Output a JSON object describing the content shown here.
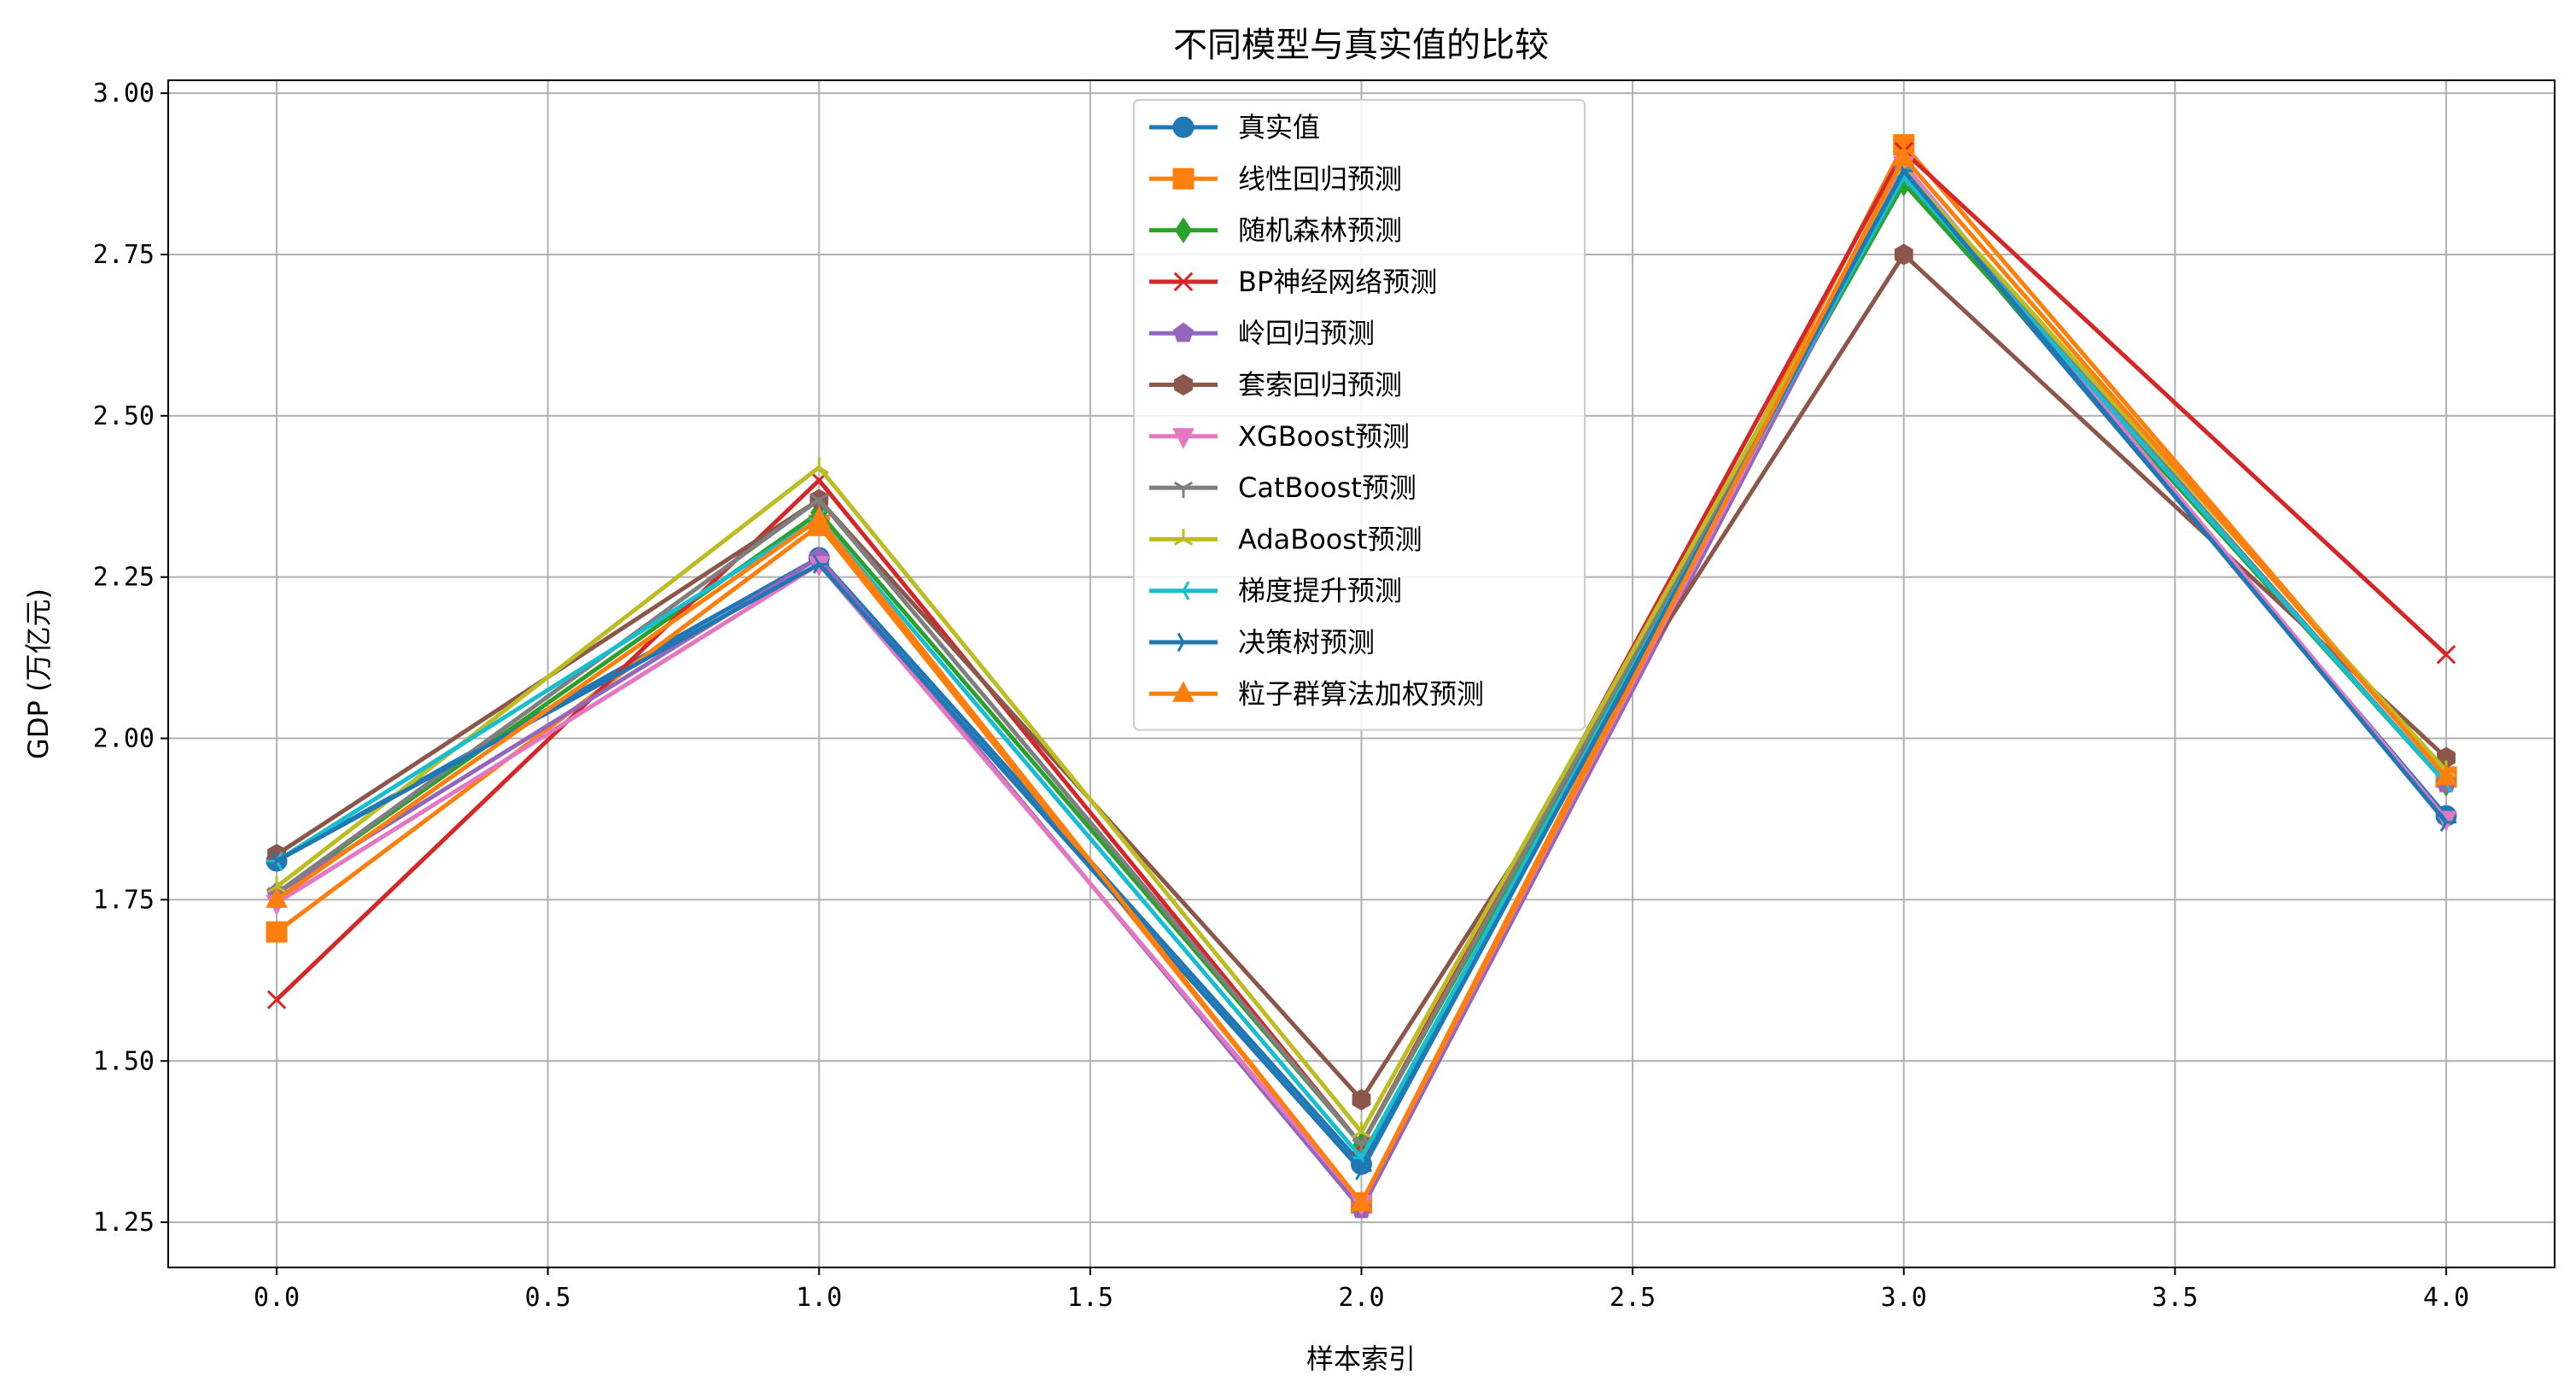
{
  "chart_data": {
    "type": "line",
    "title": "不同模型与真实值的比较",
    "xlabel": "样本索引",
    "ylabel": "GDP (万亿元)",
    "xlim": [
      -0.2,
      4.2
    ],
    "ylim": [
      1.18,
      3.02
    ],
    "xticks": [
      0.0,
      0.5,
      1.0,
      1.5,
      2.0,
      2.5,
      3.0,
      3.5,
      4.0
    ],
    "xtick_labels": [
      "0.0",
      "0.5",
      "1.0",
      "1.5",
      "2.0",
      "2.5",
      "3.0",
      "3.5",
      "4.0"
    ],
    "yticks": [
      1.25,
      1.5,
      1.75,
      2.0,
      2.25,
      2.5,
      2.75,
      3.0
    ],
    "ytick_labels": [
      "1.25",
      "1.50",
      "1.75",
      "2.00",
      "2.25",
      "2.50",
      "2.75",
      "3.00"
    ],
    "grid": true,
    "legend_position": "top-center",
    "x": [
      0,
      1,
      2,
      3,
      4
    ],
    "series": [
      {
        "name": "真实值",
        "color": "#1f77b4",
        "marker": "circle",
        "values": [
          1.81,
          2.28,
          1.34,
          2.87,
          1.88
        ]
      },
      {
        "name": "线性回归预测",
        "color": "#ff7f0e",
        "marker": "square",
        "values": [
          1.7,
          2.33,
          1.28,
          2.92,
          1.94
        ]
      },
      {
        "name": "随机森林预测",
        "color": "#2ca02c",
        "marker": "diamond",
        "values": [
          1.76,
          2.35,
          1.37,
          2.86,
          1.93
        ]
      },
      {
        "name": "BP神经网络预测",
        "color": "#d62728",
        "marker": "x",
        "values": [
          1.595,
          2.4,
          1.37,
          2.91,
          2.13
        ]
      },
      {
        "name": "岭回归预测",
        "color": "#9467bd",
        "marker": "pentagon",
        "values": [
          1.76,
          2.28,
          1.27,
          2.88,
          1.93
        ]
      },
      {
        "name": "套索回归预测",
        "color": "#8c564b",
        "marker": "hexagon",
        "values": [
          1.82,
          2.37,
          1.44,
          2.75,
          1.97
        ]
      },
      {
        "name": "XGBoost预测",
        "color": "#e377c2",
        "marker": "triangle-down",
        "values": [
          1.745,
          2.27,
          1.28,
          2.89,
          1.875
        ]
      },
      {
        "name": "CatBoost预测",
        "color": "#7f7f7f",
        "marker": "tri-down",
        "values": [
          1.76,
          2.37,
          1.37,
          2.88,
          1.93
        ]
      },
      {
        "name": "AdaBoost预测",
        "color": "#bcbd22",
        "marker": "tri-up",
        "values": [
          1.77,
          2.42,
          1.39,
          2.88,
          1.95
        ]
      },
      {
        "name": "梯度提升预测",
        "color": "#17becf",
        "marker": "tri-left",
        "values": [
          1.81,
          2.34,
          1.35,
          2.87,
          1.93
        ]
      },
      {
        "name": "决策树预测",
        "color": "#1f77b4",
        "marker": "tri-right",
        "values": [
          1.81,
          2.27,
          1.33,
          2.88,
          1.87
        ]
      },
      {
        "name": "粒子群算法加权预测",
        "color": "#ff7f0e",
        "marker": "triangle-up",
        "values": [
          1.75,
          2.34,
          1.28,
          2.9,
          1.94
        ]
      }
    ]
  }
}
